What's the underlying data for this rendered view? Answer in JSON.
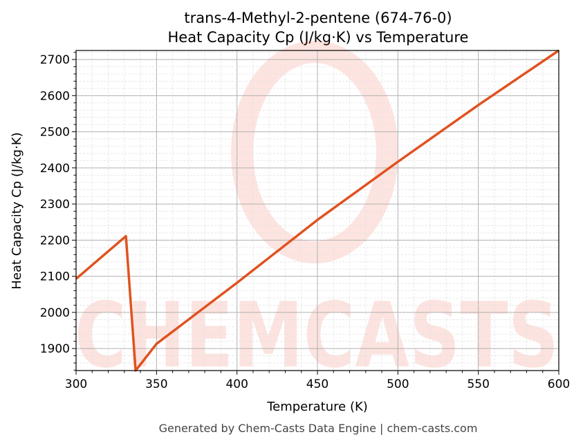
{
  "chart_data": {
    "type": "line",
    "title": "trans-4-Methyl-2-pentene (674-76-0)",
    "subtitle": "Heat Capacity Cp (J/kg·K) vs Temperature",
    "xlabel": "Temperature (K)",
    "ylabel": "Heat Capacity Cp (J/kg·K)",
    "xlim": [
      300,
      600
    ],
    "ylim": [
      1839,
      2725
    ],
    "xticks": [
      300,
      350,
      400,
      450,
      500,
      550,
      600
    ],
    "yticks": [
      1900,
      2000,
      2100,
      2200,
      2300,
      2400,
      2500,
      2600,
      2700
    ],
    "grid": true,
    "series": [
      {
        "name": "Cp",
        "color": "#e0521f",
        "x": [
          300,
          331,
          337,
          350,
          400,
          450,
          500,
          550,
          600
        ],
        "y": [
          2093,
          2211,
          1839,
          1913,
          2082,
          2256,
          2417,
          2574,
          2725
        ]
      }
    ],
    "watermark": "CHEMCASTS",
    "footer": "Generated by Chem-Casts Data Engine | chem-casts.com"
  }
}
